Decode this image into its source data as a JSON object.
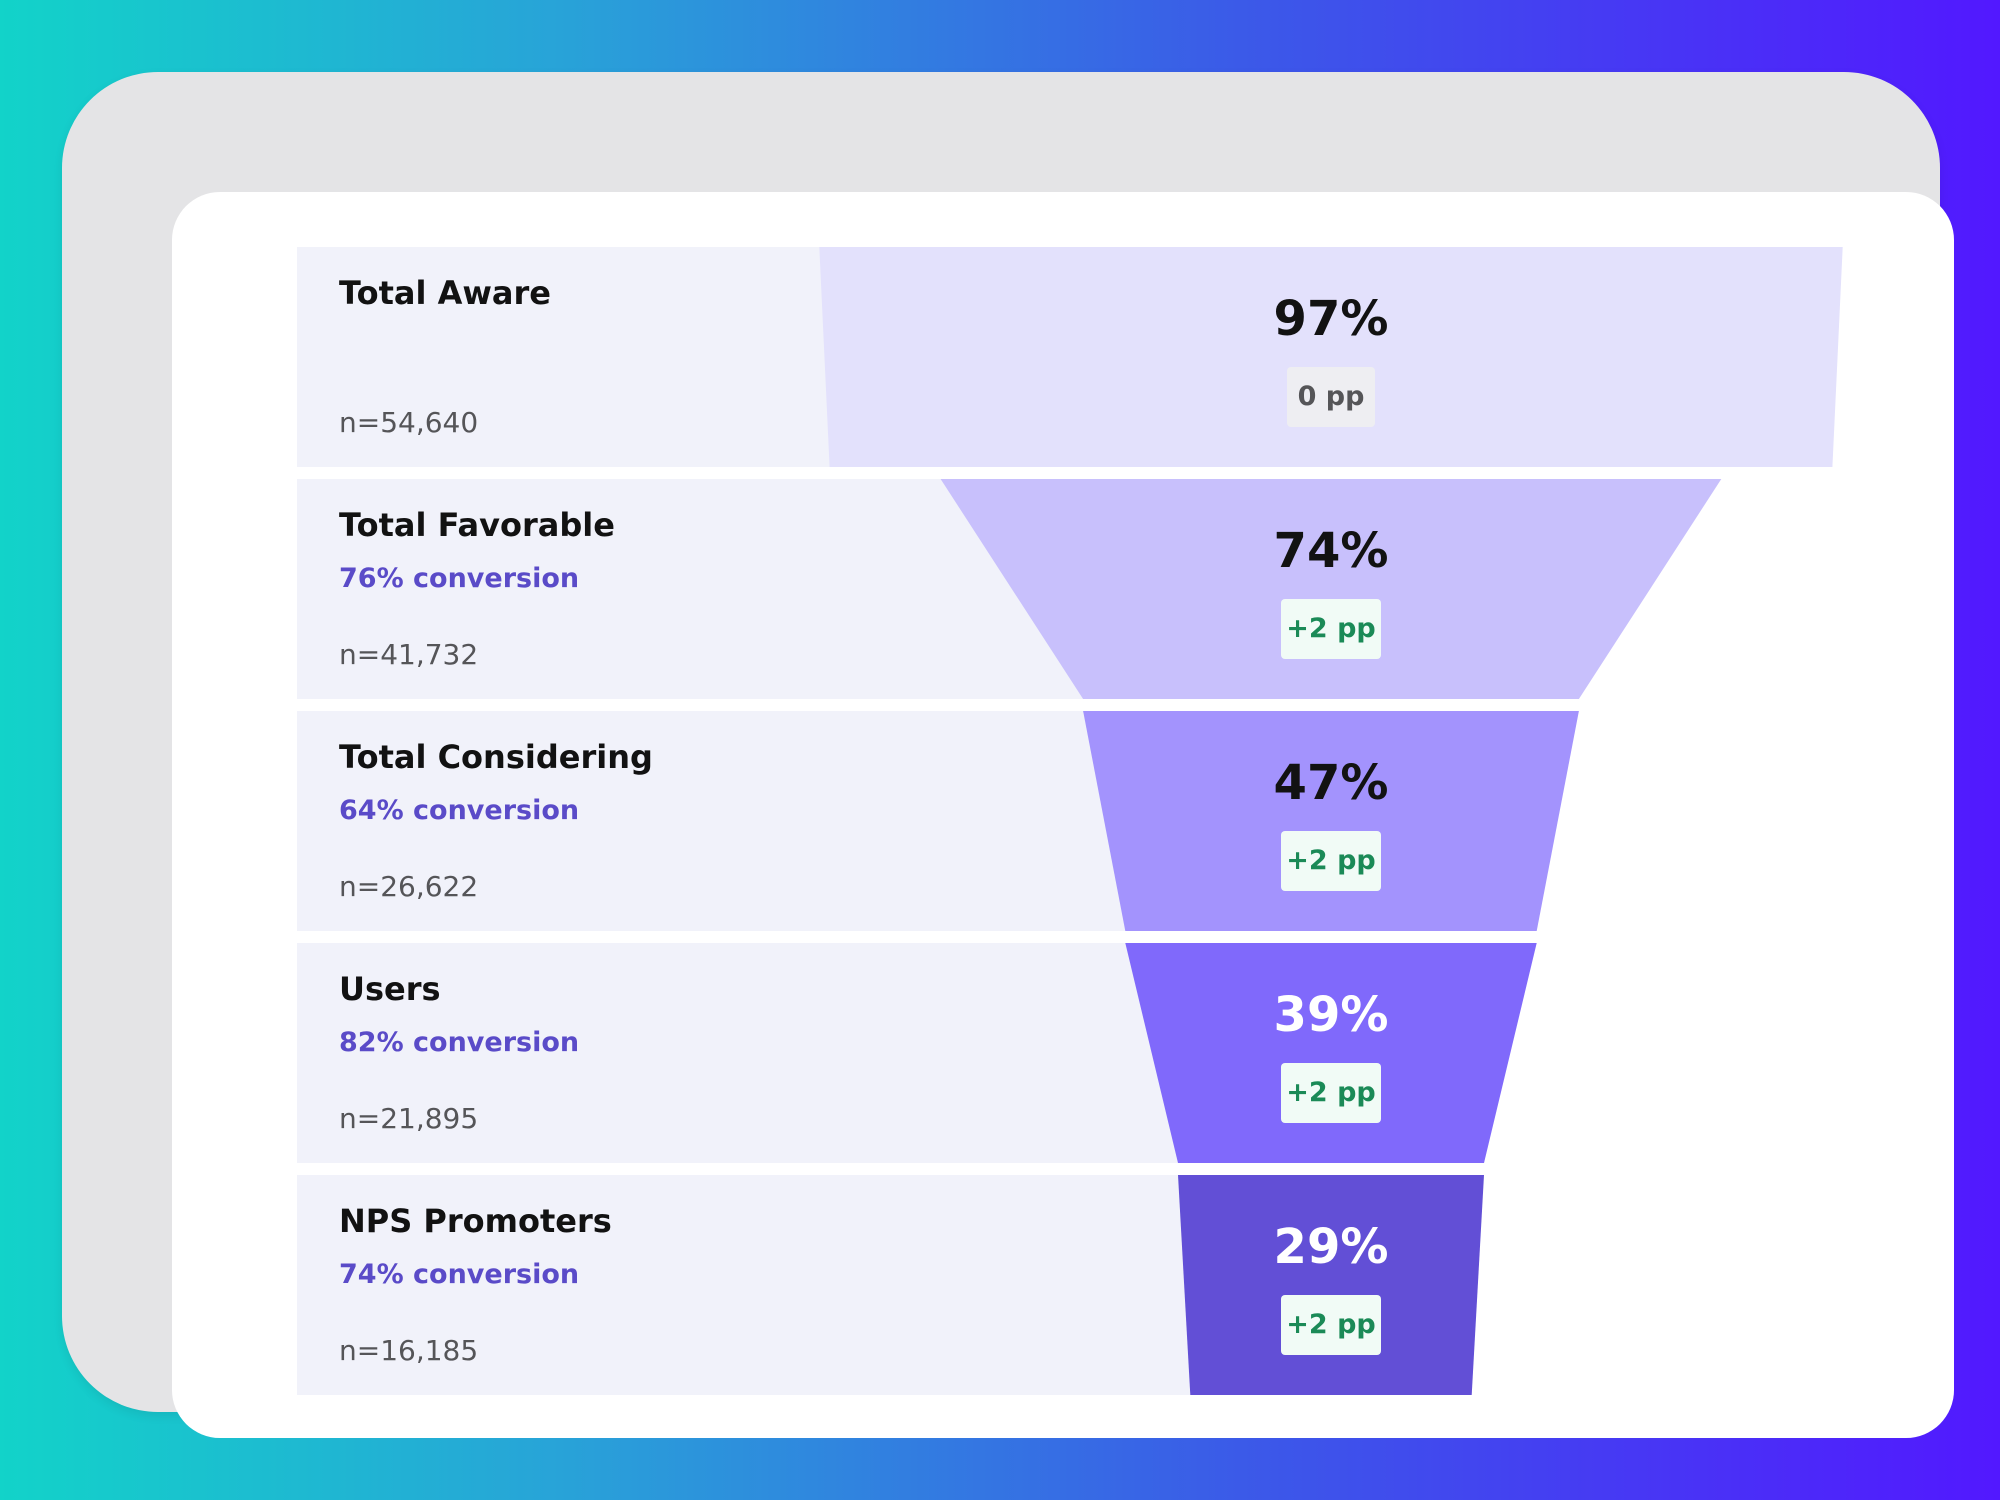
{
  "colors": {
    "row_background": "#f1f2fa",
    "conversion_text": "#5a4bc8",
    "positive_badge_text": "#1b8a57",
    "neutral_badge_text": "#555558"
  },
  "chart_data": {
    "type": "funnel",
    "title": "",
    "stages": [
      {
        "name": "Total Aware",
        "conversion": "",
        "count": "n=54,640",
        "value": 97,
        "value_label": "97%",
        "change": "0 pp",
        "change_type": "neutral",
        "fill": "#e3e1fc",
        "value_color": "#121212"
      },
      {
        "name": "Total Favorable",
        "conversion": "76% conversion",
        "count": "n=41,732",
        "value": 74,
        "value_label": "74%",
        "change": "+2 pp",
        "change_type": "positive",
        "fill": "#c8c0fc",
        "value_color": "#121212"
      },
      {
        "name": "Total Considering",
        "conversion": "64% conversion",
        "count": "n=26,622",
        "value": 47,
        "value_label": "47%",
        "change": "+2 pp",
        "change_type": "positive",
        "fill": "#a393fd",
        "value_color": "#121212"
      },
      {
        "name": "Users",
        "conversion": "82% conversion",
        "count": "n=21,895",
        "value": 39,
        "value_label": "39%",
        "change": "+2 pp",
        "change_type": "positive",
        "fill": "#8069fb",
        "value_color": "#ffffff"
      },
      {
        "name": "NPS Promoters",
        "conversion": "74% conversion",
        "count": "n=16,185",
        "value": 29,
        "value_label": "29%",
        "change": "+2 pp",
        "change_type": "positive",
        "fill": "#624fd6",
        "value_color": "#ffffff"
      }
    ]
  }
}
